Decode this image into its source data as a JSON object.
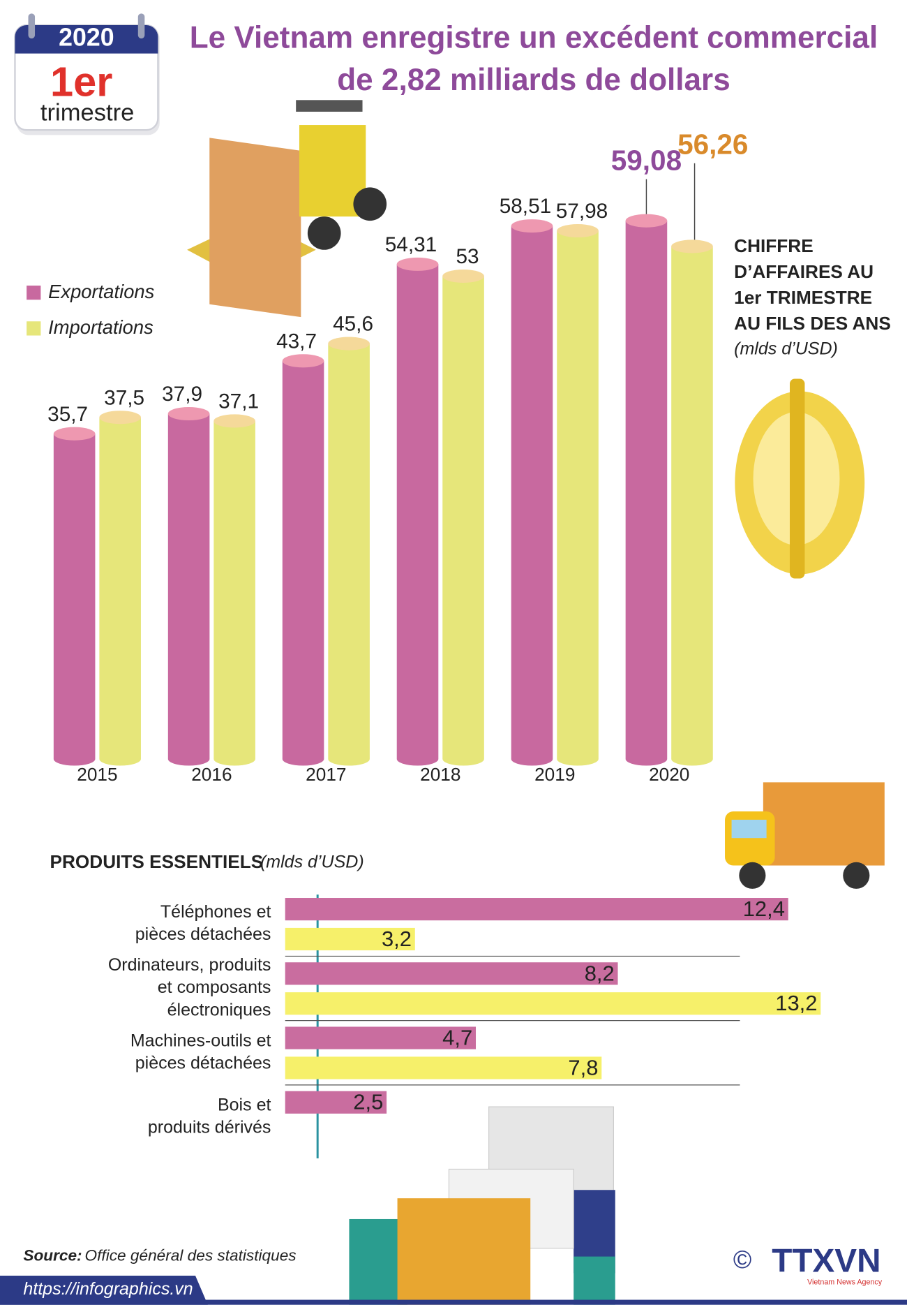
{
  "header": {
    "badge_year": "2020",
    "badge_rank": "1er",
    "badge_period": "trimestre",
    "title": "Le Vietnam enregistre un excédent commercial\nde 2,82 milliards de dollars"
  },
  "chart_data": [
    {
      "type": "bar",
      "title": "CHIFFRE\nD’AFFAIRES AU\n1er TRIMESTRE\nAU FILS DES ANS",
      "subtitle": "(mlds d’USD)",
      "categories": [
        "2015",
        "2016",
        "2017",
        "2018",
        "2019",
        "2020"
      ],
      "series": [
        {
          "name": "Exportations",
          "color": "#c8699f",
          "values": [
            35.7,
            37.9,
            43.7,
            54.31,
            58.51,
            59.08
          ],
          "value_labels": [
            "35,7",
            "37,9",
            "43,7",
            "54,31",
            "58,51",
            "59,08"
          ]
        },
        {
          "name": "Importations",
          "color": "#e6e67a",
          "values": [
            37.5,
            37.1,
            45.6,
            53,
            57.98,
            56.26
          ],
          "value_labels": [
            "37,5",
            "37,1",
            "45,6",
            "53",
            "57,98",
            "56,26"
          ]
        }
      ]
    },
    {
      "type": "barh",
      "title": "PRODUITS ESSENTIELS",
      "subtitle": "(mlds d’USD)",
      "categories": [
        "Téléphones et\npièces détachées",
        "Ordinateurs, produits\net composants\nélectroniques",
        "Machines-outils et\npièces détachées",
        "Bois et\nproduits dérivés"
      ],
      "series": [
        {
          "color": "#c96d9f",
          "values": [
            12.4,
            8.2,
            4.7,
            2.5
          ],
          "value_labels": [
            "12,4",
            "8,2",
            "4,7",
            "2,5"
          ]
        },
        {
          "color": "#f6f06a",
          "values": [
            3.2,
            13.2,
            7.8,
            null
          ],
          "value_labels": [
            "3,2",
            "13,2",
            "7,8",
            null
          ]
        }
      ]
    }
  ],
  "footer": {
    "source_label": "Source:",
    "source": "Office général des statistiques",
    "url": "https://infographics.vn",
    "copyright": "©",
    "agency": "TTXVN",
    "agency_sub": "Vietnam News Agency"
  }
}
